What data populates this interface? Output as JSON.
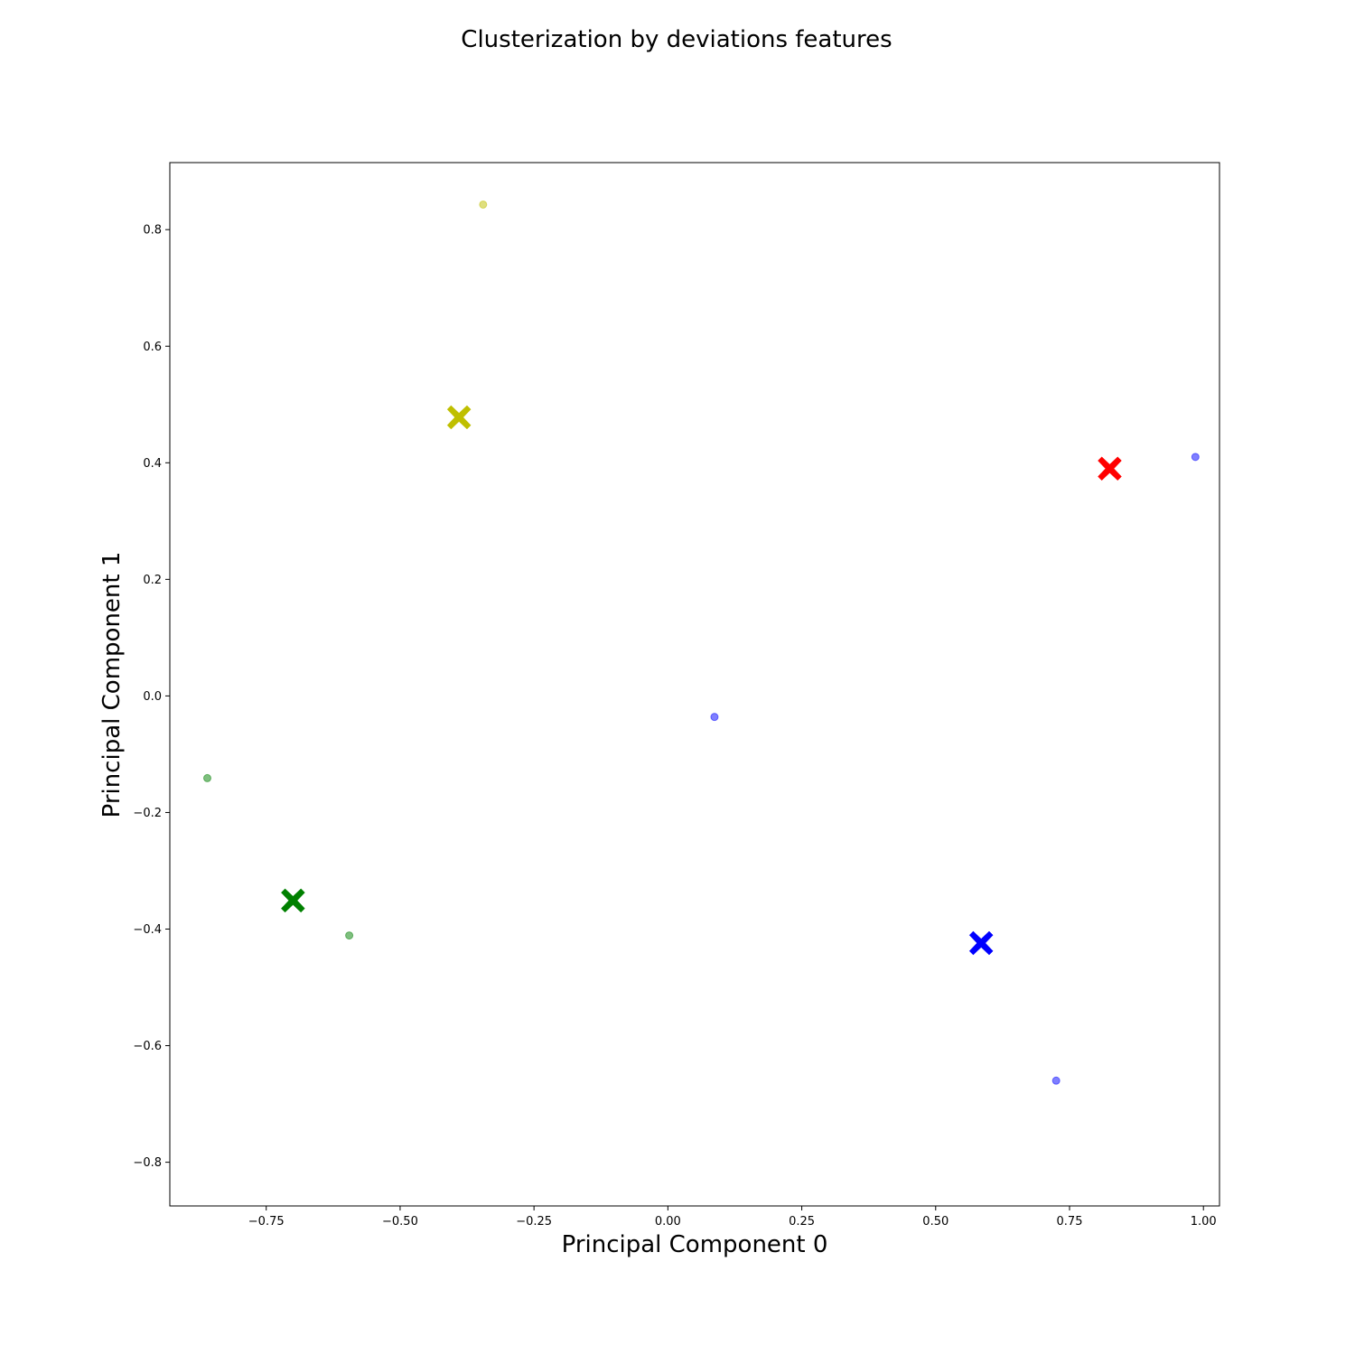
{
  "chart_data": {
    "type": "scatter",
    "title": "Clusterization by deviations features",
    "xlabel": "Principal Component 0",
    "ylabel": "Principal Component 1",
    "xlim": [
      -0.93,
      1.03
    ],
    "ylim": [
      -0.875,
      0.915
    ],
    "xticks": [
      -0.75,
      -0.5,
      -0.25,
      0.0,
      0.25,
      0.5,
      0.75,
      1.0
    ],
    "xtick_labels": [
      "−0.75",
      "−0.50",
      "−0.25",
      "0.00",
      "0.25",
      "0.50",
      "0.75",
      "1.00"
    ],
    "yticks": [
      0.8,
      0.6,
      0.4,
      0.2,
      0.0,
      -0.2,
      -0.4,
      -0.6,
      -0.8
    ],
    "ytick_labels": [
      "0.8",
      "0.6",
      "0.4",
      "0.2",
      "0.0",
      "−0.2",
      "−0.4",
      "−0.6",
      "−0.8"
    ],
    "grid": false,
    "legend": "none",
    "points": [
      {
        "x": -0.345,
        "y": 0.843,
        "color": "#bfbf00"
      },
      {
        "x": 0.985,
        "y": 0.41,
        "color": "#0000ff"
      },
      {
        "x": 0.087,
        "y": -0.036,
        "color": "#0000ff"
      },
      {
        "x": -0.86,
        "y": -0.141,
        "color": "#008000"
      },
      {
        "x": -0.595,
        "y": -0.411,
        "color": "#008000"
      },
      {
        "x": 0.725,
        "y": -0.66,
        "color": "#0000ff"
      }
    ],
    "centroids": [
      {
        "x": -0.39,
        "y": 0.478,
        "color": "#bfbf00"
      },
      {
        "x": 0.825,
        "y": 0.39,
        "color": "#ff0000"
      },
      {
        "x": -0.7,
        "y": -0.351,
        "color": "#008000"
      },
      {
        "x": 0.585,
        "y": -0.424,
        "color": "#0000ff"
      }
    ]
  }
}
